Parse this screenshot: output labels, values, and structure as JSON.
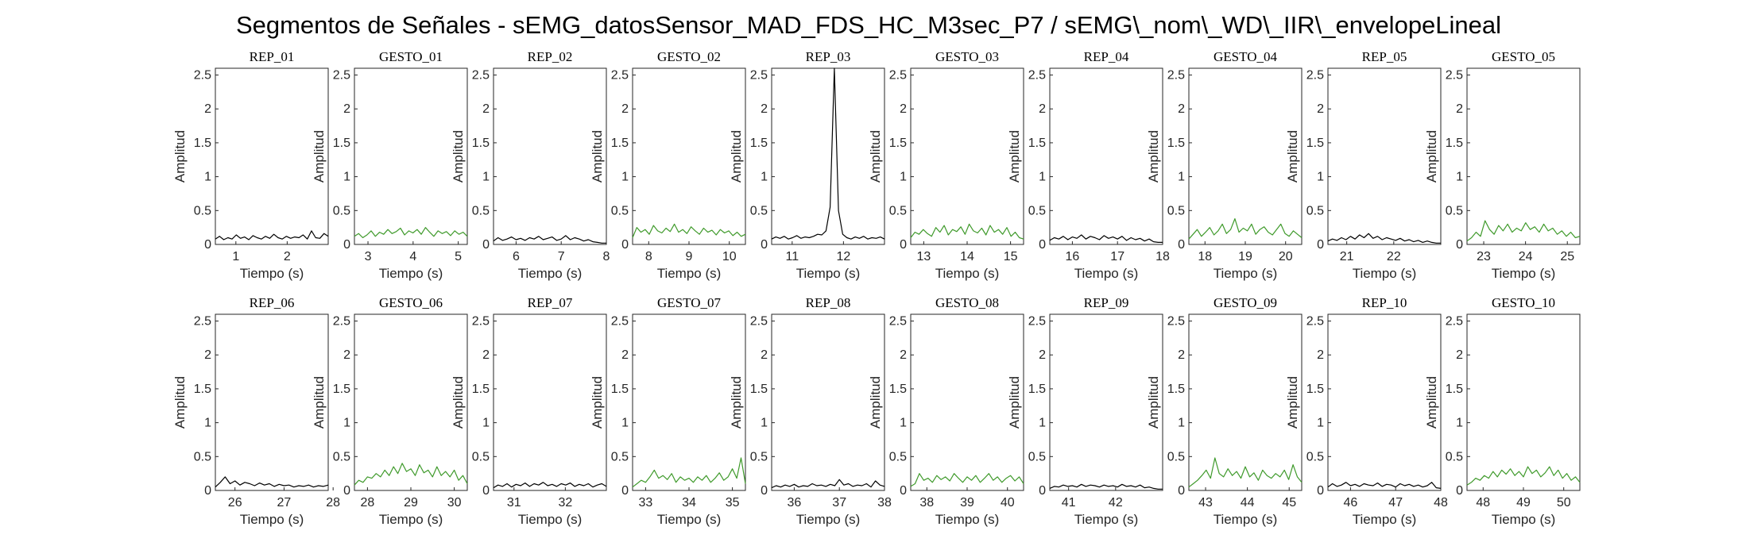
{
  "chart_data": {
    "type": "line",
    "title": "Segmentos de Señales - sEMG_datosSensor_MAD_FDS_HC_M3sec_P7 / sEMG\\_nom\\_WD\\_IIR\\_envelopeLineal",
    "xlabel": "Tiempo (s)",
    "ylabel": "Amplitud",
    "ylim": [
      0,
      2.6
    ],
    "yticks": [
      0,
      0.5,
      1,
      1.5,
      2,
      2.5
    ],
    "ytick_labels": [
      "0",
      "0.5",
      "1",
      "1.5",
      "2",
      "2.5"
    ],
    "grid": false,
    "colors": {
      "rep": "#000000",
      "gesto": "#3f9a2b"
    },
    "subplots": [
      {
        "title": "REP_01",
        "kind": "rep",
        "xlim": [
          0.6,
          2.8
        ],
        "xticks": [
          1,
          2
        ],
        "values": [
          0.08,
          0.12,
          0.07,
          0.1,
          0.08,
          0.14,
          0.09,
          0.11,
          0.07,
          0.13,
          0.1,
          0.08,
          0.12,
          0.09,
          0.15,
          0.1,
          0.08,
          0.12,
          0.09,
          0.11,
          0.1,
          0.14,
          0.08,
          0.2,
          0.1,
          0.09,
          0.16,
          0.12
        ]
      },
      {
        "title": "GESTO_01",
        "kind": "gesto",
        "xlim": [
          2.7,
          5.2
        ],
        "xticks": [
          3,
          4,
          5
        ],
        "values": [
          0.12,
          0.16,
          0.1,
          0.14,
          0.2,
          0.12,
          0.18,
          0.15,
          0.22,
          0.16,
          0.19,
          0.24,
          0.14,
          0.2,
          0.17,
          0.22,
          0.15,
          0.25,
          0.18,
          0.12,
          0.2,
          0.16,
          0.19,
          0.13,
          0.2,
          0.15,
          0.18,
          0.12
        ]
      },
      {
        "title": "REP_02",
        "kind": "rep",
        "xlim": [
          5.5,
          8
        ],
        "xticks": [
          6,
          7,
          8
        ],
        "values": [
          0.05,
          0.1,
          0.06,
          0.08,
          0.11,
          0.07,
          0.09,
          0.06,
          0.1,
          0.08,
          0.12,
          0.07,
          0.09,
          0.11,
          0.06,
          0.08,
          0.13,
          0.07,
          0.1,
          0.08,
          0.05,
          0.07,
          0.04,
          0.03,
          0.02,
          0.02
        ]
      },
      {
        "title": "GESTO_02",
        "kind": "gesto",
        "xlim": [
          7.6,
          10.4
        ],
        "xticks": [
          8,
          9,
          10
        ],
        "values": [
          0.1,
          0.25,
          0.18,
          0.22,
          0.15,
          0.28,
          0.2,
          0.17,
          0.24,
          0.19,
          0.3,
          0.18,
          0.22,
          0.16,
          0.26,
          0.2,
          0.15,
          0.24,
          0.18,
          0.21,
          0.14,
          0.22,
          0.17,
          0.2,
          0.13,
          0.18,
          0.12,
          0.15
        ]
      },
      {
        "title": "REP_03",
        "kind": "rep",
        "xlim": [
          10.6,
          12.8
        ],
        "xticks": [
          11,
          12
        ],
        "values": [
          0.08,
          0.11,
          0.09,
          0.12,
          0.08,
          0.1,
          0.13,
          0.09,
          0.11,
          0.1,
          0.12,
          0.15,
          0.14,
          0.2,
          0.55,
          2.6,
          0.5,
          0.15,
          0.1,
          0.08,
          0.11,
          0.09,
          0.12,
          0.08,
          0.1,
          0.09,
          0.11,
          0.08
        ]
      },
      {
        "title": "GESTO_03",
        "kind": "gesto",
        "xlim": [
          12.7,
          15.3
        ],
        "xticks": [
          13,
          14,
          15
        ],
        "values": [
          0.1,
          0.18,
          0.15,
          0.22,
          0.16,
          0.12,
          0.25,
          0.18,
          0.28,
          0.14,
          0.22,
          0.19,
          0.26,
          0.15,
          0.3,
          0.2,
          0.17,
          0.24,
          0.14,
          0.28,
          0.18,
          0.22,
          0.15,
          0.25,
          0.12,
          0.18,
          0.1,
          0.08
        ]
      },
      {
        "title": "REP_04",
        "kind": "rep",
        "xlim": [
          15.5,
          18
        ],
        "xticks": [
          16,
          17,
          18
        ],
        "values": [
          0.06,
          0.1,
          0.08,
          0.12,
          0.07,
          0.11,
          0.09,
          0.14,
          0.08,
          0.12,
          0.1,
          0.07,
          0.13,
          0.09,
          0.11,
          0.08,
          0.12,
          0.06,
          0.1,
          0.07,
          0.09,
          0.05,
          0.08,
          0.04,
          0.03,
          0.03
        ]
      },
      {
        "title": "GESTO_04",
        "kind": "gesto",
        "xlim": [
          17.6,
          20.4
        ],
        "xticks": [
          18,
          19,
          20
        ],
        "values": [
          0.08,
          0.15,
          0.22,
          0.12,
          0.18,
          0.25,
          0.14,
          0.2,
          0.3,
          0.16,
          0.22,
          0.38,
          0.18,
          0.24,
          0.2,
          0.3,
          0.15,
          0.22,
          0.26,
          0.18,
          0.14,
          0.22,
          0.3,
          0.16,
          0.12,
          0.2,
          0.15,
          0.1
        ]
      },
      {
        "title": "REP_05",
        "kind": "rep",
        "xlim": [
          20.6,
          23
        ],
        "xticks": [
          21,
          22
        ],
        "values": [
          0.05,
          0.08,
          0.06,
          0.1,
          0.07,
          0.12,
          0.08,
          0.14,
          0.1,
          0.16,
          0.09,
          0.12,
          0.07,
          0.1,
          0.08,
          0.06,
          0.09,
          0.05,
          0.07,
          0.04,
          0.06,
          0.03,
          0.05,
          0.03,
          0.02,
          0.02
        ]
      },
      {
        "title": "GESTO_05",
        "kind": "gesto",
        "xlim": [
          22.6,
          25.3
        ],
        "xticks": [
          23,
          24,
          25
        ],
        "values": [
          0.05,
          0.1,
          0.18,
          0.12,
          0.35,
          0.22,
          0.15,
          0.28,
          0.2,
          0.3,
          0.18,
          0.24,
          0.2,
          0.32,
          0.22,
          0.26,
          0.18,
          0.3,
          0.2,
          0.24,
          0.15,
          0.2,
          0.12,
          0.18,
          0.1,
          0.12
        ]
      },
      {
        "title": "REP_06",
        "kind": "rep",
        "xlim": [
          25.6,
          27.9
        ],
        "xticks": [
          26,
          27,
          28
        ],
        "values": [
          0.05,
          0.12,
          0.2,
          0.1,
          0.14,
          0.08,
          0.12,
          0.1,
          0.07,
          0.11,
          0.08,
          0.1,
          0.06,
          0.09,
          0.07,
          0.08,
          0.05,
          0.07,
          0.06,
          0.08,
          0.05,
          0.07,
          0.06,
          0.08
        ]
      },
      {
        "title": "GESTO_06",
        "kind": "gesto",
        "xlim": [
          27.7,
          30.3
        ],
        "xticks": [
          28,
          29,
          30
        ],
        "values": [
          0.08,
          0.15,
          0.12,
          0.2,
          0.18,
          0.25,
          0.2,
          0.3,
          0.22,
          0.35,
          0.25,
          0.4,
          0.28,
          0.32,
          0.22,
          0.38,
          0.26,
          0.3,
          0.2,
          0.35,
          0.22,
          0.28,
          0.2,
          0.3,
          0.15,
          0.22,
          0.1
        ]
      },
      {
        "title": "REP_07",
        "kind": "rep",
        "xlim": [
          30.6,
          32.8
        ],
        "xticks": [
          31,
          32
        ],
        "values": [
          0.04,
          0.08,
          0.06,
          0.1,
          0.05,
          0.09,
          0.07,
          0.11,
          0.06,
          0.1,
          0.08,
          0.12,
          0.07,
          0.09,
          0.06,
          0.1,
          0.08,
          0.11,
          0.06,
          0.09,
          0.07,
          0.1,
          0.05,
          0.08,
          0.1,
          0.06
        ]
      },
      {
        "title": "GESTO_07",
        "kind": "gesto",
        "xlim": [
          32.7,
          35.3
        ],
        "xticks": [
          33,
          34,
          35
        ],
        "values": [
          0.05,
          0.1,
          0.15,
          0.12,
          0.2,
          0.3,
          0.18,
          0.22,
          0.16,
          0.25,
          0.12,
          0.2,
          0.15,
          0.18,
          0.12,
          0.2,
          0.15,
          0.22,
          0.12,
          0.18,
          0.26,
          0.15,
          0.2,
          0.32,
          0.18,
          0.48,
          0.1
        ]
      },
      {
        "title": "REP_08",
        "kind": "rep",
        "xlim": [
          35.5,
          38
        ],
        "xticks": [
          36,
          37,
          38
        ],
        "values": [
          0.04,
          0.07,
          0.05,
          0.08,
          0.06,
          0.09,
          0.05,
          0.07,
          0.06,
          0.1,
          0.07,
          0.08,
          0.06,
          0.09,
          0.07,
          0.16,
          0.08,
          0.1,
          0.06,
          0.08,
          0.07,
          0.1,
          0.05,
          0.14,
          0.08,
          0.06
        ]
      },
      {
        "title": "GESTO_08",
        "kind": "gesto",
        "xlim": [
          37.6,
          40.4
        ],
        "xticks": [
          38,
          39,
          40
        ],
        "values": [
          0.06,
          0.1,
          0.25,
          0.15,
          0.18,
          0.12,
          0.22,
          0.16,
          0.2,
          0.14,
          0.25,
          0.18,
          0.12,
          0.2,
          0.15,
          0.22,
          0.12,
          0.18,
          0.25,
          0.15,
          0.2,
          0.12,
          0.18,
          0.22,
          0.14,
          0.2,
          0.1
        ]
      },
      {
        "title": "REP_09",
        "kind": "rep",
        "xlim": [
          40.6,
          43
        ],
        "xticks": [
          41,
          42
        ],
        "values": [
          0.03,
          0.06,
          0.05,
          0.08,
          0.06,
          0.07,
          0.05,
          0.09,
          0.06,
          0.08,
          0.07,
          0.05,
          0.08,
          0.06,
          0.07,
          0.05,
          0.09,
          0.06,
          0.07,
          0.05,
          0.08,
          0.04,
          0.05,
          0.03,
          0.02,
          0.02
        ]
      },
      {
        "title": "GESTO_09",
        "kind": "gesto",
        "xlim": [
          42.6,
          45.3
        ],
        "xticks": [
          43,
          44,
          45
        ],
        "values": [
          0.05,
          0.1,
          0.15,
          0.22,
          0.3,
          0.18,
          0.48,
          0.25,
          0.2,
          0.32,
          0.22,
          0.28,
          0.18,
          0.35,
          0.2,
          0.26,
          0.15,
          0.3,
          0.22,
          0.18,
          0.25,
          0.2,
          0.3,
          0.16,
          0.38,
          0.2,
          0.12
        ]
      },
      {
        "title": "REP_10",
        "kind": "rep",
        "xlim": [
          45.5,
          48
        ],
        "xticks": [
          46,
          47,
          48
        ],
        "values": [
          0.05,
          0.1,
          0.06,
          0.08,
          0.12,
          0.07,
          0.09,
          0.06,
          0.1,
          0.08,
          0.07,
          0.11,
          0.06,
          0.09,
          0.08,
          0.05,
          0.1,
          0.07,
          0.09,
          0.06,
          0.08,
          0.05,
          0.07,
          0.12,
          0.04,
          0.03
        ]
      },
      {
        "title": "GESTO_10",
        "kind": "gesto",
        "xlim": [
          47.6,
          50.4
        ],
        "xticks": [
          48,
          49,
          50
        ],
        "values": [
          0.08,
          0.12,
          0.18,
          0.15,
          0.22,
          0.18,
          0.28,
          0.2,
          0.3,
          0.24,
          0.32,
          0.22,
          0.28,
          0.2,
          0.35,
          0.25,
          0.3,
          0.2,
          0.26,
          0.35,
          0.22,
          0.3,
          0.18,
          0.25,
          0.15,
          0.2,
          0.12
        ]
      }
    ]
  }
}
